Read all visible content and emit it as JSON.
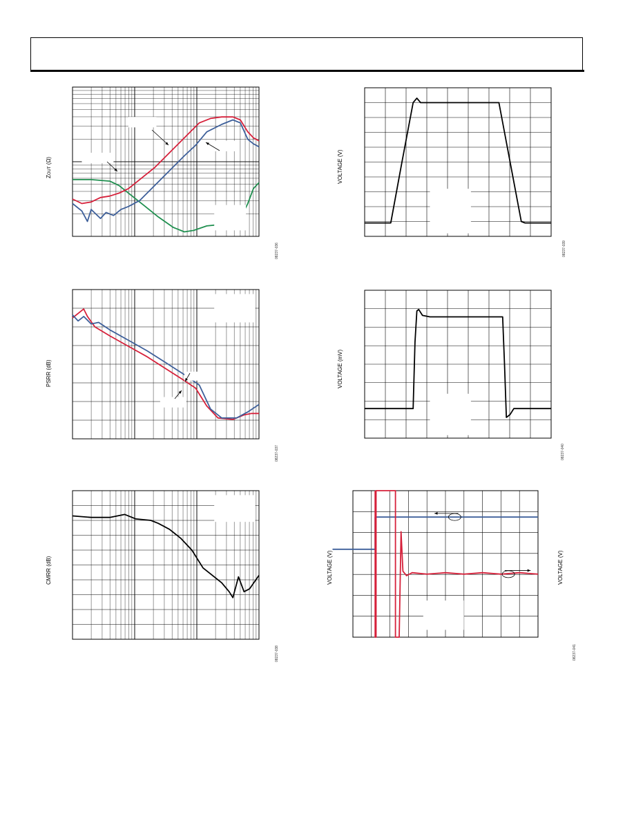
{
  "colors": {
    "green": "#1f8f4f",
    "red": "#d6203a",
    "blue": "#3d5f9a",
    "black": "#000000",
    "grid": "#000000"
  },
  "panels": [
    {
      "id": "zout",
      "y_label_main": "Z",
      "y_label_sub": "OUT",
      "y_label_rest": " (Ω)",
      "fig_id": "08237-036",
      "chart_data": {
        "type": "line",
        "x_scale": "log",
        "y_scale": "log",
        "x_range": [
          0,
          1
        ],
        "y_range": [
          0,
          1
        ],
        "series": [
          {
            "color": "green",
            "points": [
              [
                0,
                0.62
              ],
              [
                0.1,
                0.62
              ],
              [
                0.2,
                0.63
              ],
              [
                0.25,
                0.66
              ],
              [
                0.3,
                0.71
              ],
              [
                0.38,
                0.79
              ],
              [
                0.46,
                0.87
              ],
              [
                0.54,
                0.94
              ],
              [
                0.6,
                0.97
              ],
              [
                0.65,
                0.96
              ],
              [
                0.72,
                0.93
              ],
              [
                0.8,
                0.92
              ],
              [
                0.86,
                0.92
              ],
              [
                0.9,
                0.88
              ],
              [
                0.94,
                0.78
              ],
              [
                0.97,
                0.68
              ],
              [
                1,
                0.64
              ]
            ]
          },
          {
            "color": "red",
            "points": [
              [
                0,
                0.75
              ],
              [
                0.05,
                0.78
              ],
              [
                0.1,
                0.77
              ],
              [
                0.15,
                0.74
              ],
              [
                0.2,
                0.73
              ],
              [
                0.25,
                0.71
              ],
              [
                0.3,
                0.68
              ],
              [
                0.36,
                0.62
              ],
              [
                0.44,
                0.54
              ],
              [
                0.52,
                0.44
              ],
              [
                0.6,
                0.34
              ],
              [
                0.68,
                0.24
              ],
              [
                0.74,
                0.21
              ],
              [
                0.8,
                0.2
              ],
              [
                0.86,
                0.2
              ],
              [
                0.9,
                0.22
              ],
              [
                0.94,
                0.3
              ],
              [
                0.97,
                0.34
              ],
              [
                1,
                0.36
              ]
            ]
          },
          {
            "color": "blue",
            "points": [
              [
                0,
                0.78
              ],
              [
                0.05,
                0.83
              ],
              [
                0.08,
                0.9
              ],
              [
                0.1,
                0.82
              ],
              [
                0.15,
                0.88
              ],
              [
                0.18,
                0.84
              ],
              [
                0.22,
                0.86
              ],
              [
                0.26,
                0.82
              ],
              [
                0.3,
                0.8
              ],
              [
                0.36,
                0.76
              ],
              [
                0.44,
                0.66
              ],
              [
                0.52,
                0.56
              ],
              [
                0.6,
                0.46
              ],
              [
                0.66,
                0.39
              ],
              [
                0.72,
                0.3
              ],
              [
                0.8,
                0.25
              ],
              [
                0.86,
                0.22
              ],
              [
                0.9,
                0.24
              ],
              [
                0.94,
                0.35
              ],
              [
                0.97,
                0.38
              ],
              [
                1,
                0.4
              ]
            ]
          }
        ]
      }
    },
    {
      "id": "psrr",
      "y_label": "PSRR (dB)",
      "fig_id": "08237-037",
      "chart_data": {
        "type": "line",
        "x_scale": "log",
        "y_scale": "linear",
        "x_range": [
          0,
          1
        ],
        "y_range": [
          0,
          1
        ],
        "series": [
          {
            "color": "red",
            "points": [
              [
                0,
                0.19
              ],
              [
                0.03,
                0.16
              ],
              [
                0.06,
                0.13
              ],
              [
                0.08,
                0.18
              ],
              [
                0.12,
                0.25
              ],
              [
                0.2,
                0.31
              ],
              [
                0.3,
                0.38
              ],
              [
                0.4,
                0.45
              ],
              [
                0.5,
                0.53
              ],
              [
                0.6,
                0.61
              ],
              [
                0.66,
                0.66
              ],
              [
                0.72,
                0.78
              ],
              [
                0.78,
                0.86
              ],
              [
                0.86,
                0.87
              ],
              [
                0.92,
                0.84
              ],
              [
                0.96,
                0.83
              ],
              [
                1,
                0.83
              ]
            ]
          },
          {
            "color": "blue",
            "points": [
              [
                0,
                0.17
              ],
              [
                0.03,
                0.21
              ],
              [
                0.06,
                0.18
              ],
              [
                0.1,
                0.23
              ],
              [
                0.14,
                0.22
              ],
              [
                0.2,
                0.27
              ],
              [
                0.3,
                0.34
              ],
              [
                0.4,
                0.41
              ],
              [
                0.5,
                0.49
              ],
              [
                0.6,
                0.57
              ],
              [
                0.68,
                0.64
              ],
              [
                0.74,
                0.8
              ],
              [
                0.8,
                0.86
              ],
              [
                0.88,
                0.86
              ],
              [
                0.94,
                0.82
              ],
              [
                1,
                0.77
              ]
            ]
          }
        ]
      }
    },
    {
      "id": "cmrr",
      "y_label": "CMRR (dB)",
      "fig_id": "08237-038",
      "chart_data": {
        "type": "line",
        "x_scale": "log",
        "y_scale": "linear",
        "x_range": [
          0,
          1
        ],
        "y_range": [
          0,
          1
        ],
        "series": [
          {
            "color": "black",
            "points": [
              [
                0,
                0.17
              ],
              [
                0.1,
                0.18
              ],
              [
                0.2,
                0.18
              ],
              [
                0.28,
                0.16
              ],
              [
                0.34,
                0.19
              ],
              [
                0.42,
                0.2
              ],
              [
                0.46,
                0.22
              ],
              [
                0.52,
                0.26
              ],
              [
                0.58,
                0.32
              ],
              [
                0.64,
                0.4
              ],
              [
                0.7,
                0.52
              ],
              [
                0.76,
                0.58
              ],
              [
                0.8,
                0.62
              ],
              [
                0.84,
                0.68
              ],
              [
                0.86,
                0.72
              ],
              [
                0.89,
                0.58
              ],
              [
                0.92,
                0.68
              ],
              [
                0.95,
                0.66
              ],
              [
                1,
                0.57
              ]
            ]
          }
        ]
      }
    },
    {
      "id": "step-v",
      "y_label": "VOLTAGE (V)",
      "fig_id": "08237-039",
      "chart_data": {
        "type": "line",
        "x_scale": "linear",
        "y_scale": "linear",
        "x_range": [
          0,
          1
        ],
        "y_range": [
          0,
          1
        ],
        "series": [
          {
            "color": "black",
            "points": [
              [
                0,
                0.91
              ],
              [
                0.14,
                0.91
              ],
              [
                0.2,
                0.5
              ],
              [
                0.26,
                0.1
              ],
              [
                0.28,
                0.07
              ],
              [
                0.3,
                0.1
              ],
              [
                0.35,
                0.1
              ],
              [
                0.5,
                0.1
              ],
              [
                0.65,
                0.1
              ],
              [
                0.72,
                0.1
              ],
              [
                0.78,
                0.5
              ],
              [
                0.84,
                0.9
              ],
              [
                0.86,
                0.91
              ],
              [
                1,
                0.91
              ]
            ]
          }
        ]
      }
    },
    {
      "id": "step-mv",
      "y_label": "VOLTAGE (mV)",
      "fig_id": "08237-040",
      "chart_data": {
        "type": "line",
        "x_scale": "linear",
        "y_scale": "linear",
        "x_range": [
          0,
          1
        ],
        "y_range": [
          0,
          1
        ],
        "series": [
          {
            "color": "black",
            "points": [
              [
                0,
                0.8
              ],
              [
                0.26,
                0.8
              ],
              [
                0.27,
                0.35
              ],
              [
                0.28,
                0.14
              ],
              [
                0.29,
                0.13
              ],
              [
                0.31,
                0.17
              ],
              [
                0.35,
                0.18
              ],
              [
                0.5,
                0.18
              ],
              [
                0.65,
                0.18
              ],
              [
                0.74,
                0.18
              ],
              [
                0.75,
                0.5
              ],
              [
                0.76,
                0.86
              ],
              [
                0.78,
                0.84
              ],
              [
                0.8,
                0.8
              ],
              [
                1,
                0.8
              ]
            ]
          }
        ]
      }
    },
    {
      "id": "settling",
      "y_label_left": "VOLTAGE (V)",
      "y_label_right": "VOLTAGE (V)",
      "fig_id": "08237-041",
      "chart_data": {
        "type": "line",
        "x_scale": "linear",
        "y_scale": "linear",
        "x_range": [
          0,
          1
        ],
        "y_range": [
          0,
          1
        ],
        "series": [
          {
            "color": "blue",
            "points": [
              [
                -0.11,
                0.4
              ],
              [
                -0.01,
                0.4
              ],
              [
                0,
                0.4
              ],
              [
                0.12,
                0.4
              ],
              [
                0.12,
                0.18
              ],
              [
                1,
                0.18
              ]
            ]
          },
          {
            "color": "red",
            "points": [
              [
                0.12,
                0
              ],
              [
                0.12,
                1
              ],
              [
                0.125,
                1
              ],
              [
                0.125,
                0
              ],
              [
                0.23,
                0
              ],
              [
                0.23,
                1
              ],
              [
                0.25,
                1
              ],
              [
                0.26,
                0.28
              ],
              [
                0.27,
                0.55
              ],
              [
                0.29,
                0.58
              ],
              [
                0.32,
                0.56
              ],
              [
                0.4,
                0.57
              ],
              [
                0.5,
                0.56
              ],
              [
                0.6,
                0.57
              ],
              [
                0.7,
                0.56
              ],
              [
                0.8,
                0.57
              ],
              [
                0.9,
                0.56
              ],
              [
                1,
                0.57
              ]
            ]
          }
        ]
      }
    }
  ]
}
